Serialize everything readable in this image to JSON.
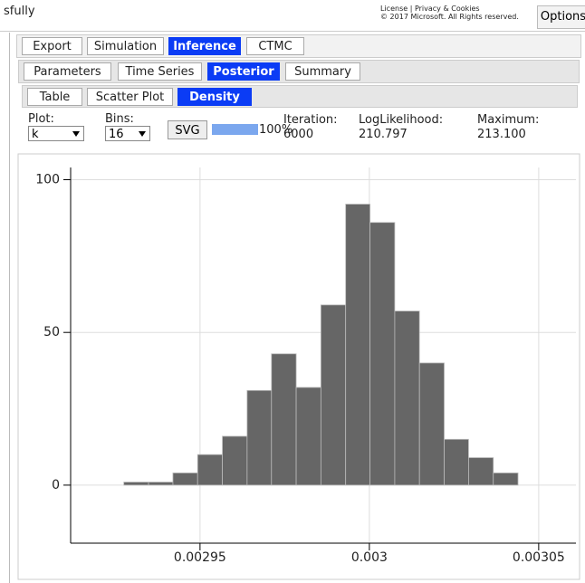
{
  "header": {
    "status": "sfully",
    "license": "License | Privacy & Cookies",
    "copyright": "© 2017 Microsoft. All Rights reserved.",
    "options": "Options"
  },
  "tabs": {
    "main": [
      "Export",
      "Simulation",
      "Inference",
      "CTMC"
    ],
    "sub": [
      "Parameters",
      "Time Series",
      "Posterior",
      "Summary"
    ],
    "view": [
      "Table",
      "Scatter Plot",
      "Density"
    ]
  },
  "controls": {
    "plot_label": "Plot:",
    "plot_value": "k",
    "bins_label": "Bins:",
    "bins_value": "16",
    "svg_button": "SVG",
    "progress": "100%",
    "iteration_label": "Iteration:",
    "iteration_value": "6000",
    "loglik_label": "LogLikelihood:",
    "loglik_value": "210.797",
    "max_label": "Maximum:",
    "max_value": "213.100"
  },
  "chart_data": {
    "type": "histogram",
    "color": "#666666",
    "bins": [
      0.0029275,
      0.0029348,
      0.002942,
      0.0029493,
      0.0029566,
      0.0029639,
      0.0029711,
      0.0029784,
      0.0029857,
      0.002993,
      0.0030002,
      0.0030075,
      0.0030148,
      0.0030221,
      0.0030293,
      0.0030366,
      0.0030439
    ],
    "values": [
      1,
      1,
      4,
      10,
      16,
      31,
      43,
      32,
      59,
      92,
      86,
      57,
      40,
      15,
      9,
      4
    ],
    "xlim": [
      0.0029118,
      0.003061
    ],
    "ylim": [
      -19,
      104
    ],
    "xticks": [
      0.00295,
      0.003,
      0.00305
    ],
    "yticks": [
      0,
      50,
      100
    ],
    "grid": true
  }
}
